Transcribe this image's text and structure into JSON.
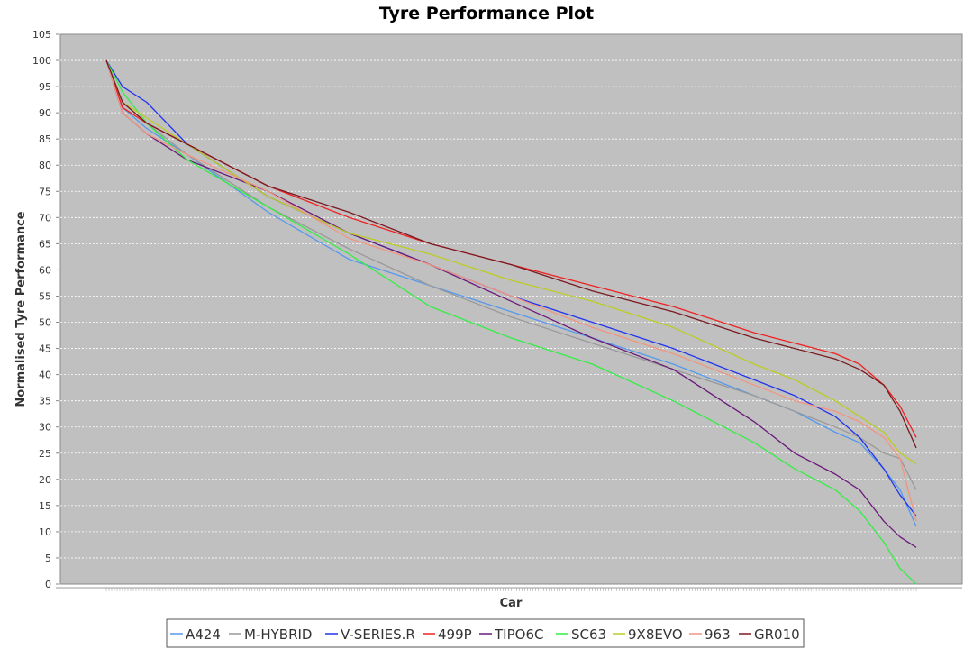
{
  "chart_data": {
    "type": "line",
    "title": "Tyre Performance Plot",
    "xlabel": "Car",
    "ylabel": "Normalised Tyre Performance",
    "ylim": [
      0,
      105
    ],
    "yticks": [
      0,
      5,
      10,
      15,
      20,
      25,
      30,
      35,
      40,
      45,
      50,
      55,
      60,
      65,
      70,
      75,
      80,
      85,
      90,
      95,
      100,
      105
    ],
    "grid": true,
    "legend_position": "bottom",
    "plot_background": "#c0c0c0",
    "x": [
      0,
      2,
      5,
      10,
      20,
      30,
      40,
      50,
      60,
      70,
      80,
      85,
      90,
      93,
      96,
      98,
      100
    ],
    "series": [
      {
        "name": "A424",
        "color": "#5599ee",
        "values": [
          100,
          91,
          87,
          82,
          71,
          62,
          57,
          52,
          47,
          42,
          36,
          33,
          29,
          27,
          22,
          18,
          11
        ]
      },
      {
        "name": "M-HYBRID",
        "color": "#999999",
        "values": [
          100,
          92,
          88,
          82,
          72,
          64,
          57,
          51,
          46,
          41,
          36,
          33,
          30,
          28,
          25,
          24,
          18
        ]
      },
      {
        "name": "V-SERIES.R",
        "color": "#2233ee",
        "values": [
          100,
          95,
          92,
          84,
          74,
          67,
          61,
          55,
          50,
          45,
          39,
          36,
          32,
          28,
          22,
          17,
          13
        ]
      },
      {
        "name": "499P",
        "color": "#ee2222",
        "values": [
          100,
          91,
          88,
          84,
          76,
          70,
          65,
          61,
          57,
          53,
          48,
          46,
          44,
          42,
          38,
          34,
          28
        ]
      },
      {
        "name": "TIPO6C",
        "color": "#6a1a7a",
        "values": [
          100,
          90,
          86,
          81,
          75,
          67,
          61,
          54,
          47,
          41,
          31,
          25,
          21,
          18,
          12,
          9,
          7
        ]
      },
      {
        "name": "SC63",
        "color": "#33ee44",
        "values": [
          100,
          94,
          88,
          81,
          72,
          63,
          53,
          47,
          42,
          35,
          27,
          22,
          18,
          14,
          8,
          3,
          0
        ]
      },
      {
        "name": "9X8EVO",
        "color": "#bbcc22",
        "values": [
          100,
          92,
          89,
          84,
          74,
          67,
          63,
          58,
          54,
          49,
          42,
          39,
          35,
          32,
          29,
          25,
          23
        ]
      },
      {
        "name": "963",
        "color": "#f29580",
        "values": [
          100,
          90,
          86,
          82,
          75,
          66,
          61,
          55,
          49,
          44,
          38,
          35,
          33,
          31,
          28,
          24,
          12
        ]
      },
      {
        "name": "GR010",
        "color": "#7a1a22",
        "values": [
          100,
          92,
          88,
          84,
          76,
          71,
          65,
          61,
          56,
          52,
          47,
          45,
          43,
          41,
          38,
          33,
          26
        ]
      }
    ]
  }
}
